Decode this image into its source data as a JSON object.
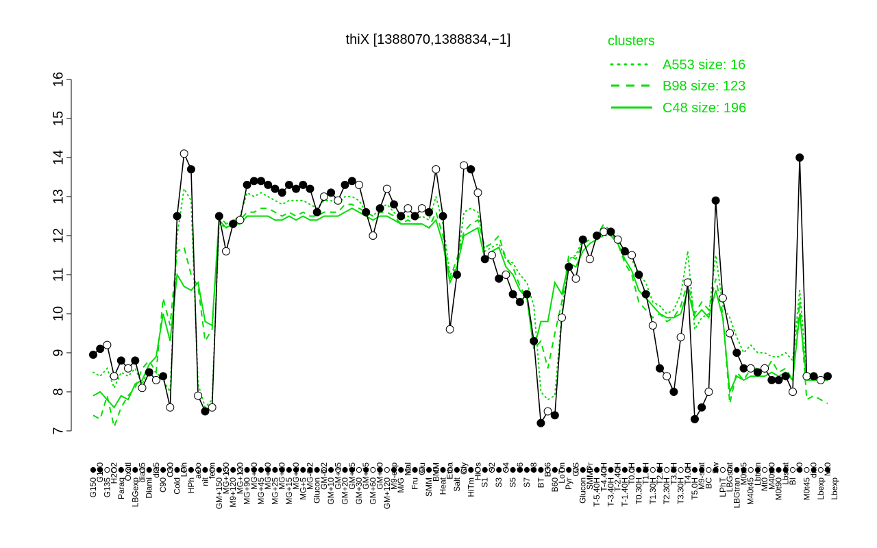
{
  "chart_data": {
    "type": "line",
    "title": "thiX [1388070,1388834,−1]",
    "xlabel": "",
    "ylabel": "",
    "ylim": [
      7,
      16
    ],
    "y_ticks": [
      7,
      8,
      9,
      10,
      11,
      12,
      13,
      14,
      15,
      16
    ],
    "grid": false,
    "legend": {
      "title": "clusters",
      "placement": "top-right",
      "color": "#00dd00",
      "entries": [
        {
          "label": "A553 size: 16",
          "style": "dotted"
        },
        {
          "label": "B98 size: 123",
          "style": "dashed"
        },
        {
          "label": "C48 size: 196",
          "style": "solid"
        }
      ]
    },
    "x_tick_labels": [
      "G150",
      "G180",
      "G135",
      "H2O2",
      "Paraq",
      "Oxctl",
      "LBGexp",
      "dia15",
      "Diami",
      "dia5",
      "C90",
      "C30",
      "Cold",
      "LPh",
      "HPh",
      "aero",
      "nit",
      "ferm",
      "GM+150",
      "MG+150",
      "M9+120",
      "MG+120",
      "MG+90",
      "MG+60",
      "MG+45",
      "MG+30",
      "MG+25",
      "MG+20",
      "MG+15",
      "MG+10",
      "MG+5",
      "MG-0.2",
      "Glucon",
      "GM-0.2",
      "GM+10",
      "GM+15",
      "GM+20",
      "GM+25",
      "GM+30",
      "GM+45",
      "GM+60",
      "GM+90",
      "GM+120",
      "M9-exp",
      "M/G",
      "Mal",
      "Fru",
      "Glu",
      "SMM",
      "BMM",
      "Heat",
      "Etha",
      "Salt",
      "Gly",
      "HiTm",
      "HiOs",
      "S1",
      "S2",
      "S3",
      "S4",
      "S5",
      "S6",
      "S7",
      "S8",
      "BT",
      "B36",
      "B60",
      "LoTm",
      "Pyr",
      "G/S",
      "Glucon",
      "SMMPr",
      "T-5.40H",
      "T-4.40H",
      "T-3.40H",
      "T-2.40H",
      "T-1.40H",
      "T0.0H",
      "T0.30H",
      "T1.0H",
      "T1.30H",
      "T2.0H",
      "T2.30H",
      "T3.0H",
      "T3.30H",
      "T4.0H",
      "T5.0H",
      "M9-stat",
      "BC",
      "Sw",
      "LPhT",
      "LBGstat",
      "LBGtran",
      "M0t45",
      "M40t45",
      "Lbtran",
      "Mt0",
      "M40t90",
      "M0t90",
      "Lbstat",
      "BI",
      "S0",
      "M0t45",
      "dia0",
      "Lbexp",
      "Mt0",
      "Lbexp"
    ],
    "x": [
      1,
      2,
      3,
      4,
      5,
      6,
      7,
      8,
      9,
      10,
      11,
      12,
      13,
      14,
      15,
      16,
      17,
      18,
      19,
      20,
      21,
      22,
      23,
      24,
      25,
      26,
      27,
      28,
      29,
      30,
      31,
      32,
      33,
      34,
      35,
      36,
      37,
      38,
      39,
      40,
      41,
      42,
      43,
      44,
      45,
      46,
      47,
      48,
      49,
      50,
      51,
      52,
      53,
      54,
      55,
      56,
      57,
      58,
      59,
      60,
      61,
      62,
      63,
      64,
      65,
      66,
      67,
      68,
      69,
      70,
      71,
      72,
      73,
      74,
      75,
      76,
      77,
      78,
      79,
      80,
      81,
      82,
      83,
      84,
      85,
      86,
      87,
      88,
      89,
      90,
      91,
      92,
      93,
      94,
      95,
      96,
      97,
      98,
      99,
      100,
      101,
      102,
      103,
      104,
      105,
      106
    ],
    "points": [
      8.95,
      9.1,
      9.2,
      8.4,
      8.8,
      8.6,
      8.8,
      8.1,
      8.5,
      8.3,
      8.4,
      7.6,
      12.5,
      14.1,
      13.7,
      7.9,
      7.5,
      7.6,
      12.5,
      11.6,
      12.3,
      12.4,
      13.3,
      13.4,
      13.4,
      13.3,
      13.2,
      13.1,
      13.3,
      13.2,
      13.3,
      13.2,
      12.6,
      13.0,
      13.1,
      12.9,
      13.3,
      13.4,
      13.3,
      12.6,
      12.0,
      12.7,
      13.2,
      12.8,
      12.5,
      12.7,
      12.5,
      12.7,
      12.6,
      13.7,
      12.5,
      9.6,
      11.0,
      13.8,
      13.7,
      13.1,
      11.4,
      11.5,
      10.9,
      11.0,
      10.5,
      10.3,
      10.5,
      9.3,
      7.2,
      7.5,
      7.4,
      9.9,
      11.2,
      10.9,
      11.9,
      11.4,
      12.0,
      12.1,
      12.1,
      11.9,
      11.6,
      11.5,
      11.0,
      10.5,
      9.7,
      8.6,
      8.4,
      8.0,
      9.4,
      10.8,
      7.3,
      7.6,
      8.0,
      12.9,
      10.4,
      9.5,
      9.0,
      8.6,
      8.6,
      8.5,
      8.6,
      8.3,
      8.3,
      8.4,
      8.0,
      14.0,
      8.4,
      8.4,
      8.3,
      8.4
    ],
    "filled_points": [
      true,
      true,
      false,
      false,
      true,
      false,
      true,
      false,
      true,
      false,
      true,
      false,
      true,
      false,
      true,
      false,
      true,
      false,
      true,
      false,
      true,
      false,
      true,
      true,
      true,
      true,
      true,
      true,
      true,
      true,
      true,
      true,
      true,
      false,
      true,
      false,
      true,
      true,
      false,
      true,
      false,
      true,
      false,
      true,
      true,
      false,
      true,
      false,
      true,
      false,
      true,
      false,
      true,
      false,
      true,
      false,
      true,
      false,
      true,
      false,
      true,
      true,
      true,
      true,
      true,
      false,
      true,
      false,
      true,
      false,
      true,
      false,
      true,
      false,
      true,
      false,
      true,
      false,
      true,
      true,
      false,
      true,
      false,
      true,
      false,
      false,
      true,
      true,
      false,
      true,
      false,
      false,
      true,
      true,
      false,
      true,
      false,
      true,
      true,
      true,
      false,
      true,
      false,
      true,
      false,
      true
    ],
    "series": [
      {
        "name": "A553 size: 16",
        "style": "dotted",
        "color": "#00dd00",
        "values": [
          8.5,
          8.4,
          8.6,
          8.1,
          8.5,
          8.4,
          8.6,
          8.2,
          8.6,
          8.5,
          8.3,
          8.0,
          12.0,
          13.2,
          12.9,
          8.2,
          7.6,
          7.8,
          12.3,
          12.2,
          12.4,
          12.5,
          13.1,
          13.0,
          13.1,
          13.0,
          12.9,
          12.8,
          12.9,
          12.9,
          12.9,
          12.8,
          12.7,
          12.9,
          12.9,
          12.8,
          13.0,
          13.0,
          12.9,
          12.6,
          12.5,
          12.7,
          12.8,
          12.6,
          12.4,
          12.5,
          12.4,
          12.5,
          12.4,
          13.0,
          12.3,
          11.0,
          11.2,
          12.6,
          12.7,
          12.6,
          11.6,
          11.7,
          11.8,
          11.4,
          11.3,
          11.0,
          10.8,
          10.2,
          8.0,
          7.8,
          7.9,
          10.0,
          11.4,
          11.5,
          11.9,
          11.8,
          11.9,
          12.0,
          12.0,
          11.9,
          11.6,
          11.4,
          11.0,
          10.8,
          10.3,
          10.2,
          10.0,
          10.1,
          10.5,
          11.6,
          9.6,
          9.9,
          10.0,
          11.5,
          10.2,
          9.9,
          9.4,
          9.0,
          9.2,
          9.0,
          9.0,
          8.9,
          8.9,
          9.0,
          8.8,
          10.6,
          8.5,
          8.4,
          8.3,
          8.4
        ]
      },
      {
        "name": "B98 size: 123",
        "style": "dashed",
        "color": "#00dd00",
        "values": [
          7.4,
          7.3,
          7.9,
          7.1,
          7.6,
          7.9,
          8.1,
          8.6,
          8.8,
          8.5,
          10.4,
          9.7,
          11.6,
          11.7,
          11.0,
          10.7,
          9.3,
          9.6,
          12.5,
          12.3,
          12.4,
          12.4,
          12.6,
          12.6,
          12.7,
          12.7,
          12.6,
          12.5,
          12.6,
          12.5,
          12.6,
          12.5,
          12.5,
          12.6,
          12.6,
          12.6,
          12.8,
          12.8,
          12.7,
          12.6,
          12.5,
          12.6,
          12.6,
          12.5,
          12.3,
          12.4,
          12.3,
          12.3,
          12.2,
          12.6,
          12.0,
          10.9,
          11.4,
          12.1,
          12.3,
          12.4,
          11.7,
          11.8,
          12.0,
          11.4,
          11.2,
          10.7,
          10.4,
          9.1,
          9.3,
          8.6,
          9.5,
          10.3,
          11.5,
          11.4,
          11.8,
          11.9,
          12.0,
          12.3,
          12.1,
          11.8,
          11.3,
          11.0,
          10.3,
          10.1,
          9.9,
          10.0,
          9.8,
          9.9,
          10.2,
          10.8,
          10.0,
          10.3,
          10.1,
          10.9,
          10.0,
          7.7,
          8.5,
          8.3,
          8.6,
          8.6,
          8.5,
          8.8,
          8.5,
          8.6,
          8.3,
          10.3,
          7.8,
          7.9,
          7.8,
          7.7
        ]
      },
      {
        "name": "C48 size: 196",
        "style": "solid",
        "color": "#00dd00",
        "values": [
          7.9,
          8.0,
          7.8,
          7.6,
          7.9,
          7.8,
          8.2,
          8.3,
          8.7,
          8.9,
          10.0,
          9.3,
          11.0,
          10.7,
          10.6,
          10.8,
          9.8,
          9.7,
          12.4,
          12.2,
          12.3,
          12.3,
          12.5,
          12.5,
          12.5,
          12.5,
          12.4,
          12.4,
          12.5,
          12.4,
          12.5,
          12.4,
          12.4,
          12.5,
          12.5,
          12.5,
          12.6,
          12.7,
          12.6,
          12.5,
          12.4,
          12.5,
          12.5,
          12.4,
          12.3,
          12.3,
          12.3,
          12.3,
          12.2,
          12.4,
          11.8,
          10.8,
          11.2,
          12.0,
          12.1,
          12.2,
          11.4,
          11.6,
          11.7,
          11.2,
          11.0,
          10.6,
          10.4,
          9.1,
          9.8,
          9.8,
          10.8,
          10.5,
          11.3,
          11.2,
          11.6,
          11.8,
          11.9,
          12.1,
          12.0,
          11.8,
          11.4,
          11.1,
          10.6,
          10.4,
          10.2,
          10.0,
          9.9,
          9.9,
          10.0,
          10.6,
          9.9,
          10.1,
          9.9,
          10.6,
          9.9,
          8.0,
          8.4,
          8.3,
          8.4,
          8.4,
          8.4,
          8.5,
          8.4,
          8.5,
          8.3,
          10.0,
          8.3,
          8.3,
          8.3,
          8.3
        ]
      }
    ]
  }
}
